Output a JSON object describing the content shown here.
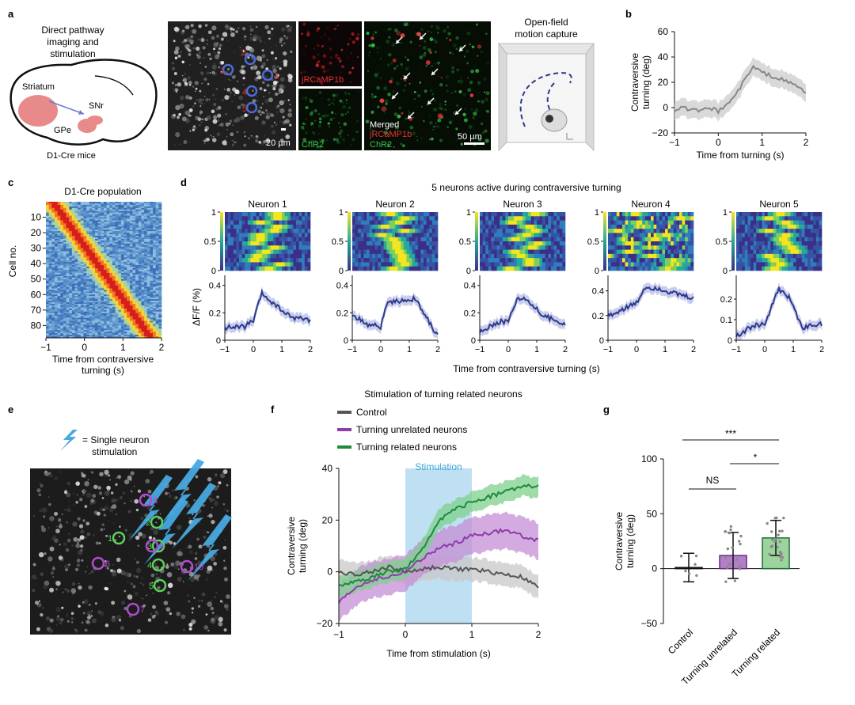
{
  "panel_a": {
    "letter": "a",
    "title_lines": [
      "Direct pathway",
      "imaging and",
      "stimulation"
    ],
    "regions": {
      "striatum": "Striatum",
      "snr": "SNr",
      "gpe": "GPe"
    },
    "mouse_label": "D1-Cre mice",
    "scale_20": "20 µm",
    "roi_numbers": [
      "1",
      "2",
      "3",
      "4",
      "5"
    ],
    "channel_red": "jRCaMP1b",
    "channel_green": "ChR2",
    "merged_lines": [
      "Merged",
      "jRCaMP1b",
      "ChR2"
    ],
    "scale_50": "50 µm",
    "motion_title": [
      "Open-field",
      "motion capture"
    ]
  },
  "panel_b": {
    "letter": "b",
    "ylabel_lines": [
      "Contraversive",
      "turning (deg)"
    ],
    "xlabel": "Time from turning (s)",
    "yticks": [
      "60",
      "40",
      "20",
      "0",
      "−20"
    ],
    "xticks": [
      "−1",
      "0",
      "1",
      "2"
    ]
  },
  "panel_c": {
    "letter": "c",
    "title": "D1-Cre population",
    "ylabel": "Cell no.",
    "yticks": [
      "10",
      "20",
      "30",
      "40",
      "50",
      "60",
      "70",
      "80"
    ],
    "xticks": [
      "−1",
      "0",
      "1",
      "2"
    ],
    "xlabel_lines": [
      "Time from contraversive",
      "turning (s)"
    ]
  },
  "panel_d": {
    "letter": "d",
    "title": "5 neurons active during contraversive turning",
    "neurons": [
      "Neuron 1",
      "Neuron 2",
      "Neuron 3",
      "Neuron 4",
      "Neuron 5"
    ],
    "heat_ticks": [
      "1",
      "0.5",
      "0"
    ],
    "ylabel": "ΔF/F (%)",
    "xticks": [
      "−1",
      "0",
      "1",
      "2"
    ],
    "xlabel": "Time from contraversive turning (s)",
    "trace_yticks": [
      [
        "0.4",
        "0.2",
        "0"
      ],
      [
        "0.4",
        "0.2",
        "0"
      ],
      [
        "0.4",
        "0.2",
        "0"
      ],
      [
        "0.4",
        "0.2",
        "0"
      ],
      [
        "0.2",
        "0.1",
        "0"
      ]
    ]
  },
  "panel_e": {
    "letter": "e",
    "legend": [
      "= Single neuron",
      "stimulation"
    ],
    "green_numbers": [
      "1",
      "2",
      "3",
      "4",
      "5"
    ],
    "purple_numbers": [
      "6",
      "7",
      "8",
      "9",
      "10"
    ]
  },
  "panel_f": {
    "letter": "f",
    "title": "Stimulation of turning related neurons",
    "legend": [
      "Control",
      "Turning unrelated neurons",
      "Turning related neurons"
    ],
    "stim_label": "Stimulation",
    "ylabel_lines": [
      "Contraversive",
      "turning (deg)"
    ],
    "yticks": [
      "40",
      "20",
      "0",
      "−20"
    ],
    "xticks": [
      "−1",
      "0",
      "1",
      "2"
    ],
    "xlabel": "Time from stimulation (s)"
  },
  "panel_g": {
    "letter": "g",
    "sig": [
      "***",
      "*",
      "NS"
    ],
    "ylabel_lines": [
      "Contraversive",
      "turning (deg)"
    ],
    "yticks": [
      "100",
      "50",
      "0",
      "−50"
    ],
    "categories": [
      "Control",
      "Turning unrelated",
      "Turning related"
    ]
  },
  "colors": {
    "control": "#555555",
    "unrelated": "#8e3ea8",
    "related": "#1f8a3b",
    "trace_blue": "#2d3a8c",
    "stim_band": "#bfe0f2"
  },
  "chart_data": [
    {
      "type": "line",
      "title": "",
      "xlabel": "Time from turning (s)",
      "ylabel": "Contraversive turning (deg)",
      "xlim": [
        -1,
        2
      ],
      "ylim": [
        -20,
        60
      ],
      "x": [
        -1,
        -0.8,
        -0.6,
        -0.4,
        -0.2,
        0,
        0.2,
        0.4,
        0.6,
        0.8,
        1.0,
        1.2,
        1.4,
        1.6,
        1.8,
        2.0
      ],
      "series": [
        {
          "values": [
            -2,
            0,
            -2,
            -3,
            0,
            -3,
            3,
            10,
            22,
            32,
            28,
            25,
            23,
            20,
            17,
            12
          ]
        }
      ]
    },
    {
      "type": "line",
      "title": "",
      "xlabel": "Time from stimulation (s)",
      "ylabel": "Contraversive turning (deg)",
      "xlim": [
        -1,
        2
      ],
      "ylim": [
        -20,
        40
      ],
      "x": [
        -1,
        -0.75,
        -0.5,
        -0.25,
        0,
        0.25,
        0.5,
        0.75,
        1.0,
        1.25,
        1.5,
        1.75,
        2.0
      ],
      "series": [
        {
          "name": "Control",
          "values": [
            0,
            -1,
            0,
            2,
            0,
            1,
            2,
            1,
            1,
            0,
            -1,
            -2,
            -6
          ]
        },
        {
          "name": "Turning unrelated neurons",
          "values": [
            -12,
            -6,
            -3,
            -2,
            0,
            5,
            9,
            11,
            14,
            15,
            16,
            14,
            12
          ]
        },
        {
          "name": "Turning related neurons",
          "values": [
            -5,
            -4,
            -2,
            0,
            1,
            8,
            20,
            24,
            27,
            29,
            31,
            33,
            33
          ]
        }
      ]
    },
    {
      "type": "bar",
      "title": "",
      "ylabel": "Contraversive turning (deg)",
      "ylim": [
        -50,
        100
      ],
      "categories": [
        "Control",
        "Turning unrelated",
        "Turning related"
      ],
      "values": [
        1,
        12,
        28
      ],
      "errors": [
        13,
        21,
        16
      ]
    }
  ]
}
